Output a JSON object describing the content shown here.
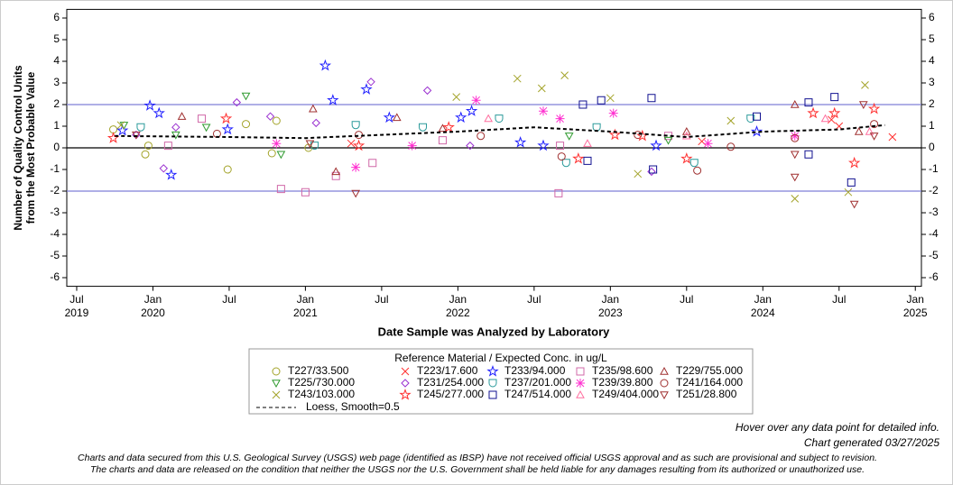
{
  "chart_data": {
    "type": "scatter",
    "y_label": [
      "Number of Quality Control Units",
      "from the Most Probable Value"
    ],
    "x_label": "Date Sample was Analyzed by Laboratory",
    "legend_title": "Reference Material / Expected Conc. in ug/L",
    "xlim": [
      2019.435,
      2025.04
    ],
    "xticks": [
      {
        "value": 2019.5,
        "label": "Jul 2019"
      },
      {
        "value": 2020.0,
        "label": "Jan 2020"
      },
      {
        "value": 2020.5,
        "label": "Jul"
      },
      {
        "value": 2021.0,
        "label": "Jan 2021"
      },
      {
        "value": 2021.5,
        "label": "Jul"
      },
      {
        "value": 2022.0,
        "label": "Jan 2022"
      },
      {
        "value": 2022.5,
        "label": "Jul"
      },
      {
        "value": 2023.0,
        "label": "Jan 2023"
      },
      {
        "value": 2023.5,
        "label": "Jul"
      },
      {
        "value": 2024.0,
        "label": "Jan 2024"
      },
      {
        "value": 2024.5,
        "label": "Jul"
      },
      {
        "value": 2025.0,
        "label": "Jan 2025"
      }
    ],
    "ylim": [
      -6.4,
      6.4
    ],
    "yticks": [
      -6,
      -5,
      -4,
      -3,
      -2,
      -1,
      0,
      1,
      2,
      3,
      4,
      5,
      6
    ],
    "reference_lines": [
      {
        "value": 2,
        "color": "#7f7fd6"
      },
      {
        "value": 0,
        "color": "#000000"
      },
      {
        "value": -2,
        "color": "#7f7fd6"
      }
    ],
    "series": [
      {
        "name": "T227/33.500",
        "color": "#a3a329",
        "marker": "circle",
        "x": [
          2019.74,
          2019.95,
          2019.97,
          2020.49,
          2020.61,
          2020.78,
          2020.81,
          2021.02
        ],
        "values": [
          0.85,
          -0.3,
          0.1,
          -1.0,
          1.1,
          -0.25,
          1.25,
          0.0
        ]
      },
      {
        "name": "T223/17.600",
        "color": "#ff3030",
        "marker": "x",
        "x": [
          2021.3,
          2023.6,
          2024.45,
          2024.5,
          2024.85
        ],
        "values": [
          0.2,
          0.3,
          1.3,
          1.0,
          0.5
        ]
      },
      {
        "name": "T233/94.000",
        "color": "#2020ff",
        "marker": "star",
        "x": [
          2019.8,
          2019.98,
          2020.12,
          2020.04,
          2020.49,
          2021.13,
          2021.18,
          2021.4,
          2021.55,
          2022.02,
          2022.09,
          2022.41,
          2022.56,
          2023.3,
          2023.96
        ],
        "values": [
          0.8,
          1.95,
          -1.25,
          1.6,
          0.85,
          3.8,
          2.2,
          2.7,
          1.4,
          1.4,
          1.7,
          0.25,
          0.1,
          0.1,
          0.75
        ]
      },
      {
        "name": "T235/98.600",
        "color": "#d068a8",
        "marker": "square",
        "x": [
          2020.1,
          2020.32,
          2020.84,
          2021.0,
          2021.2,
          2021.44,
          2021.9,
          2022.66,
          2022.67,
          2023.38
        ],
        "values": [
          0.1,
          1.35,
          -1.9,
          -2.05,
          -1.3,
          -0.7,
          0.35,
          -2.1,
          0.1,
          0.55
        ]
      },
      {
        "name": "T229/755.000",
        "color": "#a03030",
        "marker": "triangle-up",
        "x": [
          2020.19,
          2021.05,
          2021.2,
          2021.6,
          2021.9,
          2023.5,
          2024.21,
          2024.63
        ],
        "values": [
          1.45,
          1.8,
          -1.1,
          1.4,
          0.9,
          0.75,
          2.0,
          0.75
        ]
      },
      {
        "name": "T225/730.000",
        "color": "#2e9a2e",
        "marker": "triangle-down",
        "x": [
          2019.81,
          2020.15,
          2020.35,
          2020.61,
          2020.84,
          2022.73,
          2023.38
        ],
        "values": [
          1.05,
          0.6,
          0.95,
          2.4,
          -0.3,
          0.55,
          0.35
        ]
      },
      {
        "name": "T231/254.000",
        "color": "#9a30d0",
        "marker": "diamond",
        "x": [
          2019.89,
          2020.07,
          2020.15,
          2020.55,
          2020.77,
          2021.07,
          2021.43,
          2021.8,
          2022.08,
          2023.27
        ],
        "values": [
          0.6,
          -0.95,
          0.95,
          2.1,
          1.45,
          1.15,
          3.05,
          2.65,
          0.1,
          -1.1
        ]
      },
      {
        "name": "T237/201.000",
        "color": "#2a9a9a",
        "marker": "cup",
        "x": [
          2019.92,
          2021.06,
          2021.33,
          2021.77,
          2022.27,
          2022.71,
          2022.91,
          2023.55,
          2023.92
        ],
        "values": [
          0.95,
          0.1,
          1.05,
          0.95,
          1.35,
          -0.7,
          0.95,
          -0.7,
          1.35
        ]
      },
      {
        "name": "T239/39.800",
        "color": "#ff30d0",
        "marker": "asterisk",
        "x": [
          2020.81,
          2021.33,
          2021.7,
          2022.12,
          2022.56,
          2022.67,
          2023.02,
          2023.64,
          2024.21
        ],
        "values": [
          0.2,
          -0.9,
          0.1,
          2.2,
          1.7,
          1.35,
          1.6,
          0.2,
          0.55
        ]
      },
      {
        "name": "T241/164.000",
        "color": "#a03030",
        "marker": "circle",
        "x": [
          2020.42,
          2021.35,
          2022.15,
          2022.68,
          2023.18,
          2023.57,
          2023.79,
          2024.21,
          2024.73
        ],
        "values": [
          0.65,
          0.6,
          0.55,
          -0.4,
          0.6,
          -1.05,
          0.05,
          0.45,
          1.1
        ]
      },
      {
        "name": "T243/103.000",
        "color": "#a3a329",
        "marker": "x",
        "x": [
          2019.79,
          2021.99,
          2022.39,
          2022.55,
          2022.7,
          2023.0,
          2023.18,
          2023.79,
          2024.21,
          2024.56,
          2024.67
        ],
        "values": [
          1.05,
          2.35,
          3.2,
          2.75,
          3.35,
          2.3,
          -1.2,
          1.25,
          -2.35,
          -2.05,
          2.9
        ]
      },
      {
        "name": "T245/277.000",
        "color": "#ff3030",
        "marker": "star",
        "x": [
          2019.74,
          2020.48,
          2021.35,
          2021.94,
          2022.79,
          2023.03,
          2023.21,
          2023.5,
          2024.33,
          2024.47,
          2024.6,
          2024.73
        ],
        "values": [
          0.45,
          1.35,
          0.1,
          0.95,
          -0.5,
          0.6,
          0.55,
          -0.5,
          1.6,
          1.6,
          -0.7,
          1.8
        ]
      },
      {
        "name": "T247/514.000",
        "color": "#101090",
        "marker": "square",
        "x": [
          2022.82,
          2022.94,
          2023.27,
          2023.28,
          2023.96,
          2024.3,
          2024.3,
          2024.47,
          2024.58,
          2022.85
        ],
        "values": [
          2.0,
          2.2,
          2.3,
          -1.0,
          1.45,
          2.1,
          -0.3,
          2.35,
          -1.6,
          -0.6
        ]
      },
      {
        "name": "T249/404.000",
        "color": "#ff6f9f",
        "marker": "triangle-up",
        "x": [
          2022.2,
          2022.85,
          2023.5,
          2024.41,
          2024.7
        ],
        "values": [
          1.35,
          0.2,
          0.55,
          1.35,
          0.75
        ]
      },
      {
        "name": "T251/28.800",
        "color": "#a03030",
        "marker": "triangle-down",
        "x": [
          2019.89,
          2021.03,
          2021.33,
          2024.21,
          2024.21,
          2024.6,
          2024.66,
          2024.73
        ],
        "values": [
          0.6,
          0.2,
          -2.1,
          -1.35,
          -0.3,
          -2.6,
          2.0,
          0.55
        ]
      }
    ],
    "loess": {
      "name": "Loess, Smooth=0.5",
      "color": "#000000",
      "x": [
        2019.75,
        2020.5,
        2021.0,
        2021.5,
        2022.0,
        2022.5,
        2023.0,
        2023.5,
        2024.0,
        2024.5,
        2024.8
      ],
      "values": [
        0.55,
        0.5,
        0.45,
        0.6,
        0.75,
        0.95,
        0.75,
        0.5,
        0.75,
        0.85,
        1.05
      ]
    },
    "notes": [
      "Hover over any data point for detailed info.",
      "Chart generated 03/27/2025"
    ],
    "disclaimer": [
      "Charts and data secured from this U.S. Geological Survey (USGS) web page (identified as IBSP) have not received official USGS approval and as such are provisional and subject to revision.",
      "The charts and data are released on the condition that neither the USGS nor the U.S. Government shall be held liable for any damages resulting from its authorized or unauthorized use."
    ]
  }
}
